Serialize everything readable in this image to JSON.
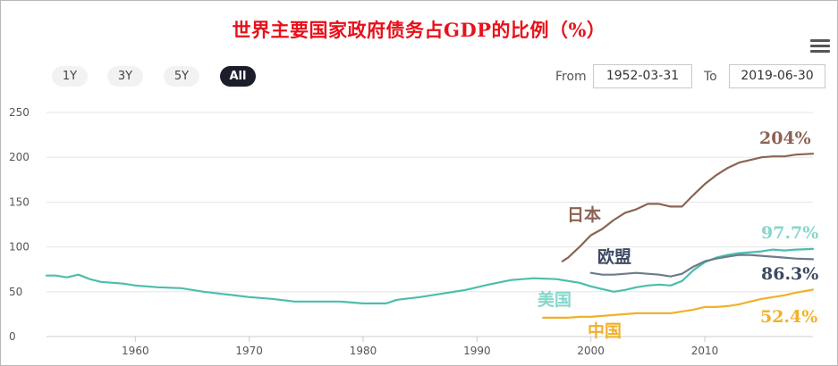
{
  "title": "世界主要国家政府债务占GDP的比例（%）",
  "menu_icon": "hamburger-menu-icon",
  "range_buttons": [
    {
      "label": "1Y",
      "active": false
    },
    {
      "label": "3Y",
      "active": false
    },
    {
      "label": "5Y",
      "active": false
    },
    {
      "label": "All",
      "active": true
    }
  ],
  "date_range": {
    "from_label": "From",
    "from_value": "1952-03-31",
    "to_label": "To",
    "to_value": "2019-06-30"
  },
  "chart_data": {
    "type": "line",
    "title": "世界主要国家政府债务占GDP的比例（%）",
    "xlabel": "",
    "ylabel": "",
    "xlim": [
      1952.2,
      2019.5
    ],
    "ylim": [
      0,
      250
    ],
    "yticks": [
      0,
      50,
      100,
      150,
      200,
      250
    ],
    "xticks": [
      1960,
      1970,
      1980,
      1990,
      2000,
      2010
    ],
    "grid": true,
    "legend": "none",
    "series": [
      {
        "name": "美国",
        "color": "#4dbdad",
        "label_text": "美国",
        "label_color": "#86d6cb",
        "end_label": "97.7%",
        "end_label_color": "#86d6cb",
        "points": [
          [
            1952.2,
            68
          ],
          [
            1953,
            68
          ],
          [
            1954,
            66
          ],
          [
            1955,
            69
          ],
          [
            1956,
            64
          ],
          [
            1957,
            61
          ],
          [
            1958,
            60
          ],
          [
            1959,
            59
          ],
          [
            1960,
            57
          ],
          [
            1962,
            55
          ],
          [
            1964,
            54
          ],
          [
            1966,
            50
          ],
          [
            1968,
            47
          ],
          [
            1970,
            44
          ],
          [
            1972,
            42
          ],
          [
            1974,
            39
          ],
          [
            1976,
            39
          ],
          [
            1978,
            39
          ],
          [
            1980,
            37
          ],
          [
            1982,
            37
          ],
          [
            1983,
            41
          ],
          [
            1985,
            44
          ],
          [
            1987,
            48
          ],
          [
            1989,
            52
          ],
          [
            1991,
            58
          ],
          [
            1993,
            63
          ],
          [
            1995,
            65
          ],
          [
            1997,
            64
          ],
          [
            1999,
            60
          ],
          [
            2000,
            56
          ],
          [
            2001,
            53
          ],
          [
            2002,
            50
          ],
          [
            2003,
            52
          ],
          [
            2004,
            55
          ],
          [
            2005,
            57
          ],
          [
            2006,
            58
          ],
          [
            2007,
            57
          ],
          [
            2008,
            62
          ],
          [
            2009,
            74
          ],
          [
            2010,
            83
          ],
          [
            2011,
            88
          ],
          [
            2012,
            91
          ],
          [
            2013,
            93
          ],
          [
            2014,
            94
          ],
          [
            2015,
            95
          ],
          [
            2016,
            97
          ],
          [
            2017,
            96
          ],
          [
            2018,
            97
          ],
          [
            2019.5,
            97.7
          ]
        ]
      },
      {
        "name": "日本",
        "color": "#8b6355",
        "label_text": "日本",
        "label_color": "#8b6355",
        "end_label": "204%",
        "end_label_color": "#8b6355",
        "points": [
          [
            1997.5,
            84
          ],
          [
            1998,
            88
          ],
          [
            1999,
            100
          ],
          [
            2000,
            113
          ],
          [
            2001,
            120
          ],
          [
            2002,
            130
          ],
          [
            2003,
            138
          ],
          [
            2004,
            142
          ],
          [
            2005,
            148
          ],
          [
            2006,
            148
          ],
          [
            2007,
            145
          ],
          [
            2008,
            145
          ],
          [
            2009,
            158
          ],
          [
            2010,
            170
          ],
          [
            2011,
            180
          ],
          [
            2012,
            188
          ],
          [
            2013,
            194
          ],
          [
            2014,
            197
          ],
          [
            2015,
            200
          ],
          [
            2016,
            201
          ],
          [
            2017,
            201
          ],
          [
            2018,
            203
          ],
          [
            2019.5,
            204
          ]
        ]
      },
      {
        "name": "欧盟",
        "color": "#6b7c8c",
        "label_text": "欧盟",
        "label_color": "#3d4a63",
        "end_label": "86.3%",
        "end_label_color": "#3d4a63",
        "points": [
          [
            2000,
            71
          ],
          [
            2001,
            69
          ],
          [
            2002,
            69
          ],
          [
            2003,
            70
          ],
          [
            2004,
            71
          ],
          [
            2005,
            70
          ],
          [
            2006,
            69
          ],
          [
            2007,
            67
          ],
          [
            2008,
            70
          ],
          [
            2009,
            78
          ],
          [
            2010,
            84
          ],
          [
            2011,
            87
          ],
          [
            2012,
            89
          ],
          [
            2013,
            91
          ],
          [
            2014,
            91
          ],
          [
            2015,
            90
          ],
          [
            2016,
            89
          ],
          [
            2017,
            88
          ],
          [
            2018,
            87
          ],
          [
            2019.5,
            86.3
          ]
        ]
      },
      {
        "name": "中国",
        "color": "#f2b02a",
        "label_text": "中国",
        "label_color": "#f2b02a",
        "end_label": "52.4%",
        "end_label_color": "#f2b02a",
        "points": [
          [
            1995.8,
            21
          ],
          [
            1997,
            21
          ],
          [
            1998,
            21
          ],
          [
            1999,
            22
          ],
          [
            2000,
            22
          ],
          [
            2001,
            23
          ],
          [
            2002,
            24
          ],
          [
            2003,
            25
          ],
          [
            2004,
            26
          ],
          [
            2005,
            26
          ],
          [
            2006,
            26
          ],
          [
            2007,
            26
          ],
          [
            2008,
            28
          ],
          [
            2009,
            30
          ],
          [
            2010,
            33
          ],
          [
            2011,
            33
          ],
          [
            2012,
            34
          ],
          [
            2013,
            36
          ],
          [
            2014,
            39
          ],
          [
            2015,
            42
          ],
          [
            2016,
            44
          ],
          [
            2017,
            46
          ],
          [
            2018,
            49
          ],
          [
            2019.5,
            52.4
          ]
        ]
      }
    ]
  }
}
